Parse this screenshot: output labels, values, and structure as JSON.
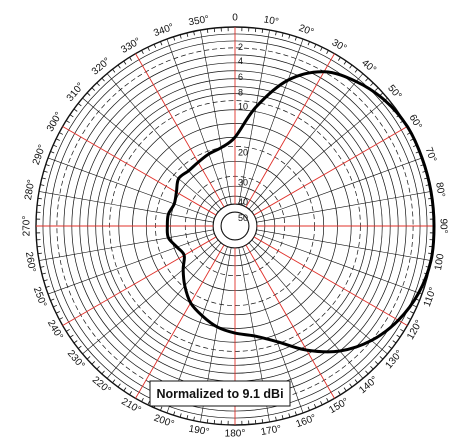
{
  "chart_data": {
    "type": "polar-line",
    "annotation": "Normalized to 9.1 dBi",
    "angle_unit": "degrees",
    "angle_zero": "top",
    "angle_direction": "clockwise",
    "angle_ticks": [
      "0",
      "10°",
      "20°",
      "30°",
      "40°",
      "50°",
      "60°",
      "70°",
      "80°",
      "90°",
      "100",
      "110°",
      "120°",
      "130°",
      "140°",
      "150°",
      "160°",
      "170°",
      "180°",
      "190°",
      "200°",
      "210°",
      "220°",
      "230°",
      "240°",
      "250°",
      "260°",
      "270°",
      "280°",
      "290°",
      "300°",
      "310°",
      "320°",
      "330°",
      "340°",
      "350°"
    ],
    "radial_labels": [
      "2",
      "4",
      "6",
      "8",
      "10",
      "20",
      "30",
      "40",
      "50"
    ],
    "radial_range_db": [
      -50,
      0
    ],
    "series": [
      {
        "theta": [
          0,
          10,
          20,
          30,
          40,
          50,
          60,
          70,
          80,
          90,
          100,
          110,
          120,
          130,
          140,
          150,
          160,
          170,
          180,
          190,
          200,
          210,
          220,
          230,
          240,
          250,
          260,
          270,
          280,
          290,
          300,
          310,
          320,
          330,
          340,
          350
        ],
        "r": [
          -18,
          -11,
          -6,
          -3,
          -1.5,
          -0.5,
          0,
          0,
          0,
          0,
          0,
          -0.5,
          -1.5,
          -3,
          -5,
          -7.5,
          -10.5,
          -13,
          -14,
          -15,
          -16.5,
          -18,
          -20.5,
          -24,
          -27,
          -26,
          -24,
          -24,
          -24,
          -25,
          -24,
          -22,
          -22.5,
          -22,
          -21,
          -20
        ]
      }
    ]
  }
}
